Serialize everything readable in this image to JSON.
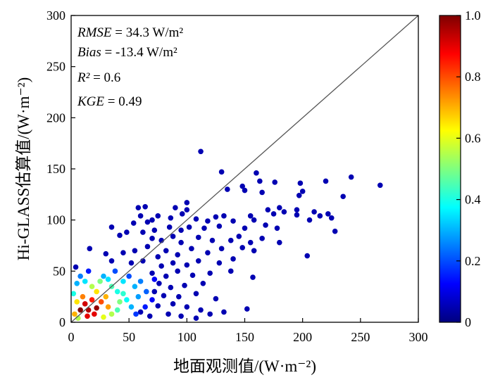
{
  "chart_data": {
    "type": "scatter",
    "xlabel": "地面观测值/(W·m⁻²)",
    "ylabel": "Hi-GLASS估算值/(W·m⁻²)",
    "xlim": [
      0,
      300
    ],
    "ylim": [
      0,
      300
    ],
    "x_ticks": [
      "0",
      "50",
      "100",
      "150",
      "200",
      "250",
      "300"
    ],
    "y_ticks": [
      "0",
      "50",
      "100",
      "150",
      "200",
      "250",
      "300"
    ],
    "reference_line": "1:1",
    "stats": [
      {
        "name": "RMSE",
        "value": " = 34.3 W/m²"
      },
      {
        "name": "Bias",
        "value": " = -13.4 W/m²"
      },
      {
        "name": "R²",
        "value": " = 0.6"
      },
      {
        "name": "KGE",
        "value": " = 0.49"
      }
    ],
    "colorbar": {
      "range": [
        0,
        1
      ],
      "ticks": [
        "0",
        "0.2",
        "0.4",
        "0.6",
        "0.8",
        "1.0"
      ],
      "colormap": [
        "#00007f",
        "#0000ff",
        "#007fff",
        "#00ffff",
        "#7fff7f",
        "#ffff00",
        "#ff7f00",
        "#ff0000",
        "#7f0000"
      ]
    },
    "points": [
      {
        "x": 112,
        "y": 167,
        "d": 0.05
      },
      {
        "x": 130,
        "y": 147,
        "d": 0.05
      },
      {
        "x": 160,
        "y": 146,
        "d": 0.05
      },
      {
        "x": 242,
        "y": 142,
        "d": 0.05
      },
      {
        "x": 267,
        "y": 134,
        "d": 0.05
      },
      {
        "x": 220,
        "y": 138,
        "d": 0.05
      },
      {
        "x": 198,
        "y": 136,
        "d": 0.05
      },
      {
        "x": 176,
        "y": 137,
        "d": 0.05
      },
      {
        "x": 163,
        "y": 138,
        "d": 0.05
      },
      {
        "x": 148,
        "y": 133,
        "d": 0.05
      },
      {
        "x": 150,
        "y": 129,
        "d": 0.05
      },
      {
        "x": 135,
        "y": 130,
        "d": 0.05
      },
      {
        "x": 200,
        "y": 128,
        "d": 0.05
      },
      {
        "x": 197,
        "y": 124,
        "d": 0.05
      },
      {
        "x": 235,
        "y": 123,
        "d": 0.05
      },
      {
        "x": 165,
        "y": 127,
        "d": 0.05
      },
      {
        "x": 100,
        "y": 117,
        "d": 0.05
      },
      {
        "x": 58,
        "y": 112,
        "d": 0.05
      },
      {
        "x": 64,
        "y": 113,
        "d": 0.05
      },
      {
        "x": 90,
        "y": 112,
        "d": 0.05
      },
      {
        "x": 100,
        "y": 110,
        "d": 0.05
      },
      {
        "x": 180,
        "y": 112,
        "d": 0.05
      },
      {
        "x": 195,
        "y": 110,
        "d": 0.05
      },
      {
        "x": 195,
        "y": 105,
        "d": 0.05
      },
      {
        "x": 210,
        "y": 108,
        "d": 0.05
      },
      {
        "x": 222,
        "y": 106,
        "d": 0.05
      },
      {
        "x": 215,
        "y": 104,
        "d": 0.05
      },
      {
        "x": 225,
        "y": 102,
        "d": 0.05
      },
      {
        "x": 206,
        "y": 100,
        "d": 0.05
      },
      {
        "x": 184,
        "y": 108,
        "d": 0.05
      },
      {
        "x": 175,
        "y": 106,
        "d": 0.05
      },
      {
        "x": 170,
        "y": 110,
        "d": 0.05
      },
      {
        "x": 158,
        "y": 100,
        "d": 0.05
      },
      {
        "x": 155,
        "y": 104,
        "d": 0.05
      },
      {
        "x": 140,
        "y": 99,
        "d": 0.05
      },
      {
        "x": 132,
        "y": 104,
        "d": 0.05
      },
      {
        "x": 125,
        "y": 103,
        "d": 0.05
      },
      {
        "x": 118,
        "y": 99,
        "d": 0.05
      },
      {
        "x": 108,
        "y": 101,
        "d": 0.05
      },
      {
        "x": 96,
        "y": 106,
        "d": 0.05
      },
      {
        "x": 86,
        "y": 102,
        "d": 0.05
      },
      {
        "x": 75,
        "y": 104,
        "d": 0.05
      },
      {
        "x": 70,
        "y": 100,
        "d": 0.05
      },
      {
        "x": 66,
        "y": 98,
        "d": 0.05
      },
      {
        "x": 60,
        "y": 104,
        "d": 0.05
      },
      {
        "x": 54,
        "y": 97,
        "d": 0.05
      },
      {
        "x": 35,
        "y": 93,
        "d": 0.05
      },
      {
        "x": 228,
        "y": 89,
        "d": 0.05
      },
      {
        "x": 178,
        "y": 92,
        "d": 0.05
      },
      {
        "x": 168,
        "y": 95,
        "d": 0.05
      },
      {
        "x": 150,
        "y": 92,
        "d": 0.05
      },
      {
        "x": 128,
        "y": 94,
        "d": 0.05
      },
      {
        "x": 115,
        "y": 92,
        "d": 0.05
      },
      {
        "x": 102,
        "y": 93,
        "d": 0.05
      },
      {
        "x": 95,
        "y": 90,
        "d": 0.05
      },
      {
        "x": 85,
        "y": 93,
        "d": 0.05
      },
      {
        "x": 72,
        "y": 90,
        "d": 0.05
      },
      {
        "x": 62,
        "y": 88,
        "d": 0.05
      },
      {
        "x": 48,
        "y": 88,
        "d": 0.05
      },
      {
        "x": 42,
        "y": 85,
        "d": 0.05
      },
      {
        "x": 180,
        "y": 78,
        "d": 0.05
      },
      {
        "x": 165,
        "y": 82,
        "d": 0.05
      },
      {
        "x": 155,
        "y": 78,
        "d": 0.05
      },
      {
        "x": 145,
        "y": 84,
        "d": 0.05
      },
      {
        "x": 138,
        "y": 80,
        "d": 0.05
      },
      {
        "x": 122,
        "y": 80,
        "d": 0.05
      },
      {
        "x": 110,
        "y": 83,
        "d": 0.05
      },
      {
        "x": 95,
        "y": 78,
        "d": 0.05
      },
      {
        "x": 88,
        "y": 84,
        "d": 0.05
      },
      {
        "x": 78,
        "y": 80,
        "d": 0.05
      },
      {
        "x": 70,
        "y": 82,
        "d": 0.05
      },
      {
        "x": 16,
        "y": 72,
        "d": 0.05
      },
      {
        "x": 204,
        "y": 65,
        "d": 0.05
      },
      {
        "x": 158,
        "y": 70,
        "d": 0.05
      },
      {
        "x": 148,
        "y": 73,
        "d": 0.05
      },
      {
        "x": 130,
        "y": 72,
        "d": 0.05
      },
      {
        "x": 118,
        "y": 68,
        "d": 0.05
      },
      {
        "x": 104,
        "y": 72,
        "d": 0.05
      },
      {
        "x": 92,
        "y": 66,
        "d": 0.05
      },
      {
        "x": 82,
        "y": 70,
        "d": 0.05
      },
      {
        "x": 75,
        "y": 64,
        "d": 0.05
      },
      {
        "x": 66,
        "y": 74,
        "d": 0.05
      },
      {
        "x": 55,
        "y": 70,
        "d": 0.05
      },
      {
        "x": 45,
        "y": 68,
        "d": 0.05
      },
      {
        "x": 30,
        "y": 67,
        "d": 0.05
      },
      {
        "x": 140,
        "y": 62,
        "d": 0.05
      },
      {
        "x": 128,
        "y": 58,
        "d": 0.05
      },
      {
        "x": 110,
        "y": 60,
        "d": 0.05
      },
      {
        "x": 100,
        "y": 56,
        "d": 0.05
      },
      {
        "x": 88,
        "y": 58,
        "d": 0.05
      },
      {
        "x": 78,
        "y": 55,
        "d": 0.05
      },
      {
        "x": 62,
        "y": 60,
        "d": 0.05
      },
      {
        "x": 52,
        "y": 58,
        "d": 0.05
      },
      {
        "x": 35,
        "y": 60,
        "d": 0.05
      },
      {
        "x": 4,
        "y": 54,
        "d": 0.05
      },
      {
        "x": 138,
        "y": 50,
        "d": 0.05
      },
      {
        "x": 120,
        "y": 48,
        "d": 0.05
      },
      {
        "x": 105,
        "y": 46,
        "d": 0.05
      },
      {
        "x": 92,
        "y": 50,
        "d": 0.05
      },
      {
        "x": 82,
        "y": 45,
        "d": 0.05
      },
      {
        "x": 70,
        "y": 48,
        "d": 0.05
      },
      {
        "x": 157,
        "y": 44,
        "d": 0.05
      },
      {
        "x": 114,
        "y": 38,
        "d": 0.05
      },
      {
        "x": 98,
        "y": 36,
        "d": 0.05
      },
      {
        "x": 86,
        "y": 34,
        "d": 0.05
      },
      {
        "x": 76,
        "y": 38,
        "d": 0.05
      },
      {
        "x": 108,
        "y": 28,
        "d": 0.05
      },
      {
        "x": 93,
        "y": 25,
        "d": 0.05
      },
      {
        "x": 80,
        "y": 26,
        "d": 0.05
      },
      {
        "x": 72,
        "y": 30,
        "d": 0.05
      },
      {
        "x": 125,
        "y": 23,
        "d": 0.05
      },
      {
        "x": 100,
        "y": 15,
        "d": 0.05
      },
      {
        "x": 88,
        "y": 18,
        "d": 0.05
      },
      {
        "x": 75,
        "y": 16,
        "d": 0.05
      },
      {
        "x": 152,
        "y": 13,
        "d": 0.05
      },
      {
        "x": 112,
        "y": 12,
        "d": 0.05
      },
      {
        "x": 132,
        "y": 10,
        "d": 0.05
      },
      {
        "x": 120,
        "y": 8,
        "d": 0.05
      },
      {
        "x": 95,
        "y": 6,
        "d": 0.05
      },
      {
        "x": 84,
        "y": 8,
        "d": 0.05
      },
      {
        "x": 68,
        "y": 6,
        "d": 0.05
      },
      {
        "x": 108,
        "y": 4,
        "d": 0.05
      },
      {
        "x": 60,
        "y": 10,
        "d": 0.05
      },
      {
        "x": 60,
        "y": 40,
        "d": 0.25
      },
      {
        "x": 55,
        "y": 35,
        "d": 0.3
      },
      {
        "x": 65,
        "y": 30,
        "d": 0.22
      },
      {
        "x": 58,
        "y": 25,
        "d": 0.28
      },
      {
        "x": 50,
        "y": 45,
        "d": 0.2
      },
      {
        "x": 45,
        "y": 40,
        "d": 0.35
      },
      {
        "x": 40,
        "y": 30,
        "d": 0.4
      },
      {
        "x": 48,
        "y": 22,
        "d": 0.38
      },
      {
        "x": 52,
        "y": 15,
        "d": 0.3
      },
      {
        "x": 40,
        "y": 12,
        "d": 0.45
      },
      {
        "x": 35,
        "y": 35,
        "d": 0.45
      },
      {
        "x": 38,
        "y": 50,
        "d": 0.2
      },
      {
        "x": 28,
        "y": 45,
        "d": 0.3
      },
      {
        "x": 25,
        "y": 40,
        "d": 0.5
      },
      {
        "x": 22,
        "y": 30,
        "d": 0.65
      },
      {
        "x": 18,
        "y": 35,
        "d": 0.55
      },
      {
        "x": 12,
        "y": 40,
        "d": 0.35
      },
      {
        "x": 8,
        "y": 45,
        "d": 0.25
      },
      {
        "x": 5,
        "y": 38,
        "d": 0.3
      },
      {
        "x": 30,
        "y": 25,
        "d": 0.7
      },
      {
        "x": 26,
        "y": 20,
        "d": 0.8
      },
      {
        "x": 32,
        "y": 15,
        "d": 0.72
      },
      {
        "x": 35,
        "y": 8,
        "d": 0.55
      },
      {
        "x": 28,
        "y": 5,
        "d": 0.6
      },
      {
        "x": 20,
        "y": 8,
        "d": 0.9
      },
      {
        "x": 15,
        "y": 12,
        "d": 0.95
      },
      {
        "x": 12,
        "y": 18,
        "d": 0.92
      },
      {
        "x": 10,
        "y": 25,
        "d": 0.75
      },
      {
        "x": 8,
        "y": 12,
        "d": 1.0
      },
      {
        "x": 5,
        "y": 20,
        "d": 0.65
      },
      {
        "x": 3,
        "y": 8,
        "d": 0.7
      },
      {
        "x": 18,
        "y": 22,
        "d": 0.85
      },
      {
        "x": 22,
        "y": 14,
        "d": 0.98
      },
      {
        "x": 14,
        "y": 6,
        "d": 0.9
      },
      {
        "x": 6,
        "y": 4,
        "d": 0.55
      },
      {
        "x": 42,
        "y": 20,
        "d": 0.5
      },
      {
        "x": 45,
        "y": 28,
        "d": 0.42
      },
      {
        "x": 70,
        "y": 22,
        "d": 0.12
      },
      {
        "x": 64,
        "y": 15,
        "d": 0.15
      },
      {
        "x": 56,
        "y": 8,
        "d": 0.18
      },
      {
        "x": 72,
        "y": 42,
        "d": 0.12
      },
      {
        "x": 15,
        "y": 50,
        "d": 0.15
      },
      {
        "x": 32,
        "y": 42,
        "d": 0.35
      },
      {
        "x": 2,
        "y": 28,
        "d": 0.4
      }
    ]
  }
}
